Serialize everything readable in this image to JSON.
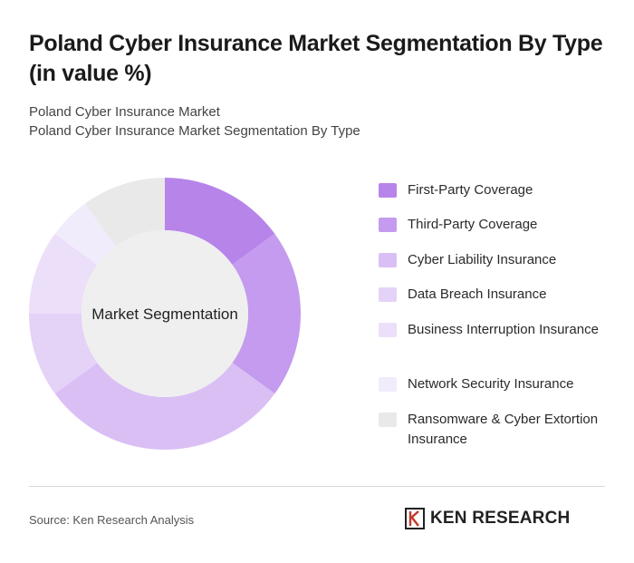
{
  "header": {
    "title": "Poland Cyber Insurance Market Segmentation By Type (in value %)",
    "subtitle_1": "Poland Cyber Insurance Market",
    "subtitle_2": "Poland Cyber Insurance Market Segmentation By Type"
  },
  "chart_data": {
    "type": "pie",
    "variant": "donut",
    "center_label": "Market Segmentation",
    "categories": [
      "First-Party Coverage",
      "Third-Party Coverage",
      "Cyber Liability Insurance",
      "Data Breach Insurance",
      "Business Interruption Insurance",
      "Network Security Insurance",
      "Ransomware & Cyber Extortion Insurance"
    ],
    "values": [
      15,
      20,
      30,
      10,
      10,
      5,
      10
    ],
    "colors": [
      "#b784ea",
      "#c49bee",
      "#dabff5",
      "#e4d2f7",
      "#ecdff9",
      "#f1ecfb",
      "#e9e9e9"
    ],
    "legend_position": "right"
  },
  "footer": {
    "source": "Source: Ken Research Analysis",
    "logo_text": "KEN RESEARCH"
  }
}
